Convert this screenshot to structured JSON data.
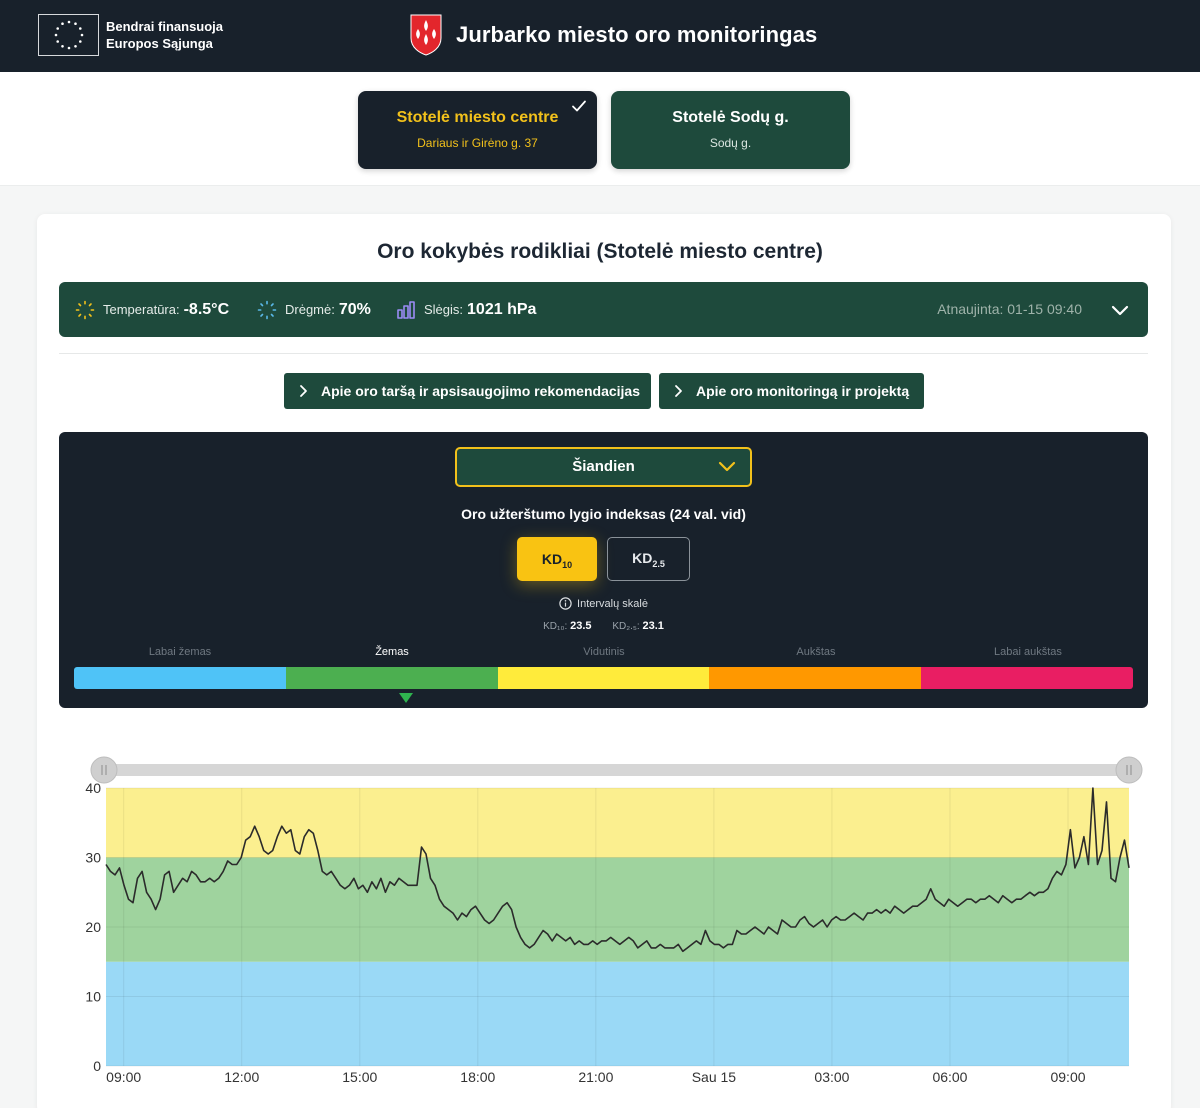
{
  "header": {
    "eu_line1": "Bendrai finansuoja",
    "eu_line2": "Europos Sąjunga",
    "title": "Jurbarko miesto oro monitoringas"
  },
  "stations": [
    {
      "name": "Stotelė miesto centre",
      "address": "Dariaus ir Girėno g. 37",
      "selected": true
    },
    {
      "name": "Stotelė Sodų g.",
      "address": "Sodų g.",
      "selected": false
    }
  ],
  "card": {
    "title": "Oro kokybės rodikliai (Stotelė miesto centre)"
  },
  "weather": {
    "temp_label": "Temperatūra:",
    "temp_value": "-8.5°C",
    "humidity_label": "Drėgmė:",
    "humidity_value": "70%",
    "pressure_label": "Slėgis:",
    "pressure_value": "1021 hPa",
    "updated": "Atnaujinta: 01-15 09:40"
  },
  "info_buttons": {
    "pollution": "Apie oro taršą ir apsisaugojimo rekomendacijas",
    "project": "Apie oro monitoringą ir projektą"
  },
  "index_panel": {
    "period": "Šiandien",
    "title": "Oro užterštumo lygio indeksas (24 val. vid)",
    "pm10_label": "KD",
    "pm10_sub": "10",
    "pm25_label": "KD",
    "pm25_sub": "2.5",
    "scale_link": "Intervalų skalė",
    "pm10_reading_label": "KD₁₀:",
    "pm10_reading": "23.5",
    "pm25_reading_label": "KD₂.₅:",
    "pm25_reading": "23.1",
    "current_level_index": 1,
    "levels": [
      {
        "label": "Labai žemas",
        "color": "#4fc3f7"
      },
      {
        "label": "Žemas",
        "color": "#4caf50"
      },
      {
        "label": "Vidutinis",
        "color": "#ffeb3b"
      },
      {
        "label": "Aukštas",
        "color": "#ff9800"
      },
      {
        "label": "Labai aukštas",
        "color": "#e91e63"
      }
    ]
  },
  "chart_data": {
    "type": "line",
    "title": "",
    "xlabel": "",
    "ylabel": "",
    "ylim": [
      0,
      40
    ],
    "yticks": [
      0,
      10,
      20,
      30,
      40
    ],
    "xticks": [
      "09:00",
      "12:00",
      "15:00",
      "18:00",
      "21:00",
      "Sau 15",
      "03:00",
      "06:00",
      "09:00"
    ],
    "bands": [
      {
        "from": 0,
        "to": 15,
        "color": "#9ad9f6"
      },
      {
        "from": 15,
        "to": 30,
        "color": "#9fd39e"
      },
      {
        "from": 30,
        "to": 40,
        "color": "#fbef8f"
      }
    ],
    "x_start_hours": 8.55,
    "x_end_hours": 34.55,
    "series": [
      {
        "values": [
          29,
          28,
          27.5,
          28.5,
          26,
          24,
          23.5,
          27,
          28,
          25,
          24,
          22.5,
          24,
          27.5,
          28,
          25,
          26,
          27,
          26.5,
          28,
          27.5,
          26.5,
          26.5,
          27,
          26.5,
          27,
          28,
          29.5,
          29,
          29,
          30,
          32.5,
          33,
          34.5,
          33,
          31,
          30.5,
          31,
          33,
          34.5,
          33.5,
          34,
          31,
          30.5,
          33,
          34,
          33.5,
          31,
          28,
          27.5,
          28,
          27,
          26,
          25.5,
          26,
          27,
          25.5,
          26,
          25,
          26.5,
          25.5,
          27,
          25,
          26.5,
          26,
          27,
          26.5,
          26,
          26,
          26,
          31.5,
          30.5,
          27,
          26,
          24,
          23,
          22.5,
          22,
          21,
          22,
          21.5,
          22.5,
          23,
          22,
          21,
          20.5,
          21,
          22,
          23,
          23.5,
          22.5,
          20,
          18.5,
          17.5,
          17,
          17.5,
          18.5,
          19.5,
          19,
          18,
          19,
          18.5,
          18,
          18.5,
          17.5,
          18,
          17.5,
          17.5,
          18,
          17.5,
          18,
          18,
          18.5,
          18,
          17.5,
          18,
          18.5,
          18,
          17,
          17.5,
          18,
          17,
          17,
          17.5,
          17,
          17,
          17,
          17.5,
          16.5,
          17,
          17.5,
          18,
          17.5,
          19.5,
          18,
          17.5,
          17.5,
          17,
          17.5,
          17.5,
          19.5,
          19,
          19,
          19.5,
          20,
          19.5,
          19,
          20,
          19.5,
          19,
          21,
          20.5,
          20,
          20,
          21,
          21.5,
          20.5,
          20,
          20.5,
          21,
          20,
          21,
          21.5,
          21,
          21,
          21.5,
          22,
          21.5,
          21,
          22,
          22,
          22.5,
          22,
          22.5,
          22,
          23,
          22.5,
          22,
          22.5,
          23,
          23,
          23.5,
          24,
          25.5,
          24,
          23.5,
          23,
          24,
          23.5,
          23,
          23.5,
          24,
          24,
          23.5,
          24,
          24,
          24.5,
          24,
          23.5,
          24.5,
          24,
          23.5,
          24,
          24,
          24.5,
          25,
          24.5,
          25,
          25,
          25.5,
          27,
          28,
          27.5,
          29,
          34,
          28.5,
          30,
          33,
          29,
          40,
          29,
          31,
          38,
          27,
          26.5,
          30,
          32.5,
          28.5
        ]
      }
    ]
  }
}
